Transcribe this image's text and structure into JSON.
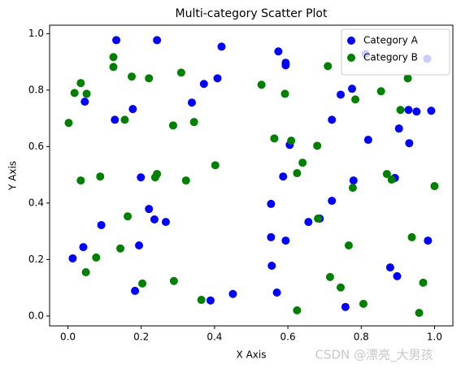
{
  "chart_data": {
    "type": "scatter",
    "title": "Multi-category Scatter Plot",
    "x_label": "X Axis",
    "y_label": "Y Axis",
    "xlim": [
      -0.05,
      1.05
    ],
    "ylim": [
      -0.035,
      1.03
    ],
    "xticks": [
      {
        "value": 0,
        "label": "0.0"
      },
      0.2,
      0.4,
      0.6,
      0.8,
      {
        "value": 1,
        "label": "1.0"
      }
    ],
    "yticks": [
      {
        "value": 0,
        "label": "0.0"
      },
      0.2,
      0.4,
      0.6,
      0.8,
      {
        "value": 1,
        "label": "1.0"
      }
    ],
    "grid": false,
    "legend": "upper right",
    "series": [
      {
        "name": "Category A",
        "color": "blue",
        "x": [
          0.132,
          0.243,
          0.419,
          0.574,
          0.594,
          0.594,
          0.046,
          0.177,
          0.128,
          0.338,
          0.371,
          0.408,
          0.744,
          0.775,
          0.72,
          0.819,
          0.903,
          0.929,
          0.951,
          0.991,
          0.931,
          0.892,
          0.982,
          0.879,
          0.898,
          0.757,
          0.98,
          0.812,
          0.605,
          0.587,
          0.779,
          0.72,
          0.554,
          0.656,
          0.687,
          0.554,
          0.594,
          0.556,
          0.57,
          0.45,
          0.389,
          0.183,
          0.199,
          0.221,
          0.236,
          0.267,
          0.091,
          0.194,
          0.042,
          0.013
        ],
        "values": [
          0.977,
          0.977,
          0.954,
          0.937,
          0.897,
          0.888,
          0.759,
          0.733,
          0.695,
          0.756,
          0.822,
          0.842,
          0.784,
          0.805,
          0.695,
          0.624,
          0.664,
          0.73,
          0.724,
          0.727,
          0.612,
          0.489,
          0.267,
          0.172,
          0.141,
          0.032,
          0.911,
          0.928,
          0.606,
          0.494,
          0.48,
          0.408,
          0.397,
          0.333,
          0.345,
          0.279,
          0.267,
          0.178,
          0.083,
          0.078,
          0.055,
          0.089,
          0.491,
          0.379,
          0.342,
          0.333,
          0.322,
          0.25,
          0.244,
          0.204
        ]
      },
      {
        "name": "Category B",
        "color": "green",
        "x": [
          0.124,
          0.124,
          0.174,
          0.221,
          0.309,
          0.035,
          0.018,
          0.051,
          0.002,
          0.155,
          0.287,
          0.344,
          0.528,
          0.592,
          0.709,
          0.784,
          0.854,
          0.927,
          0.907,
          0.563,
          0.609,
          0.64,
          0.625,
          0.68,
          0.402,
          0.238,
          0.243,
          0.322,
          0.088,
          0.035,
          0.87,
          0.883,
          0.777,
          1.0,
          0.163,
          0.682,
          0.938,
          0.143,
          0.766,
          0.077,
          0.049,
          0.203,
          0.289,
          0.715,
          0.744,
          0.969,
          0.364,
          0.625,
          0.806,
          0.958
        ],
        "values": [
          0.917,
          0.882,
          0.848,
          0.842,
          0.862,
          0.825,
          0.79,
          0.787,
          0.684,
          0.695,
          0.675,
          0.687,
          0.819,
          0.787,
          0.885,
          0.767,
          0.796,
          0.842,
          0.73,
          0.629,
          0.621,
          0.543,
          0.506,
          0.603,
          0.534,
          0.491,
          0.503,
          0.48,
          0.494,
          0.48,
          0.503,
          0.483,
          0.454,
          0.46,
          0.353,
          0.345,
          0.279,
          0.239,
          0.25,
          0.207,
          0.155,
          0.115,
          0.124,
          0.138,
          0.101,
          0.118,
          0.057,
          0.02,
          0.043,
          0.011
        ]
      }
    ]
  },
  "watermark": "CSDN @漂亮_大男孩"
}
